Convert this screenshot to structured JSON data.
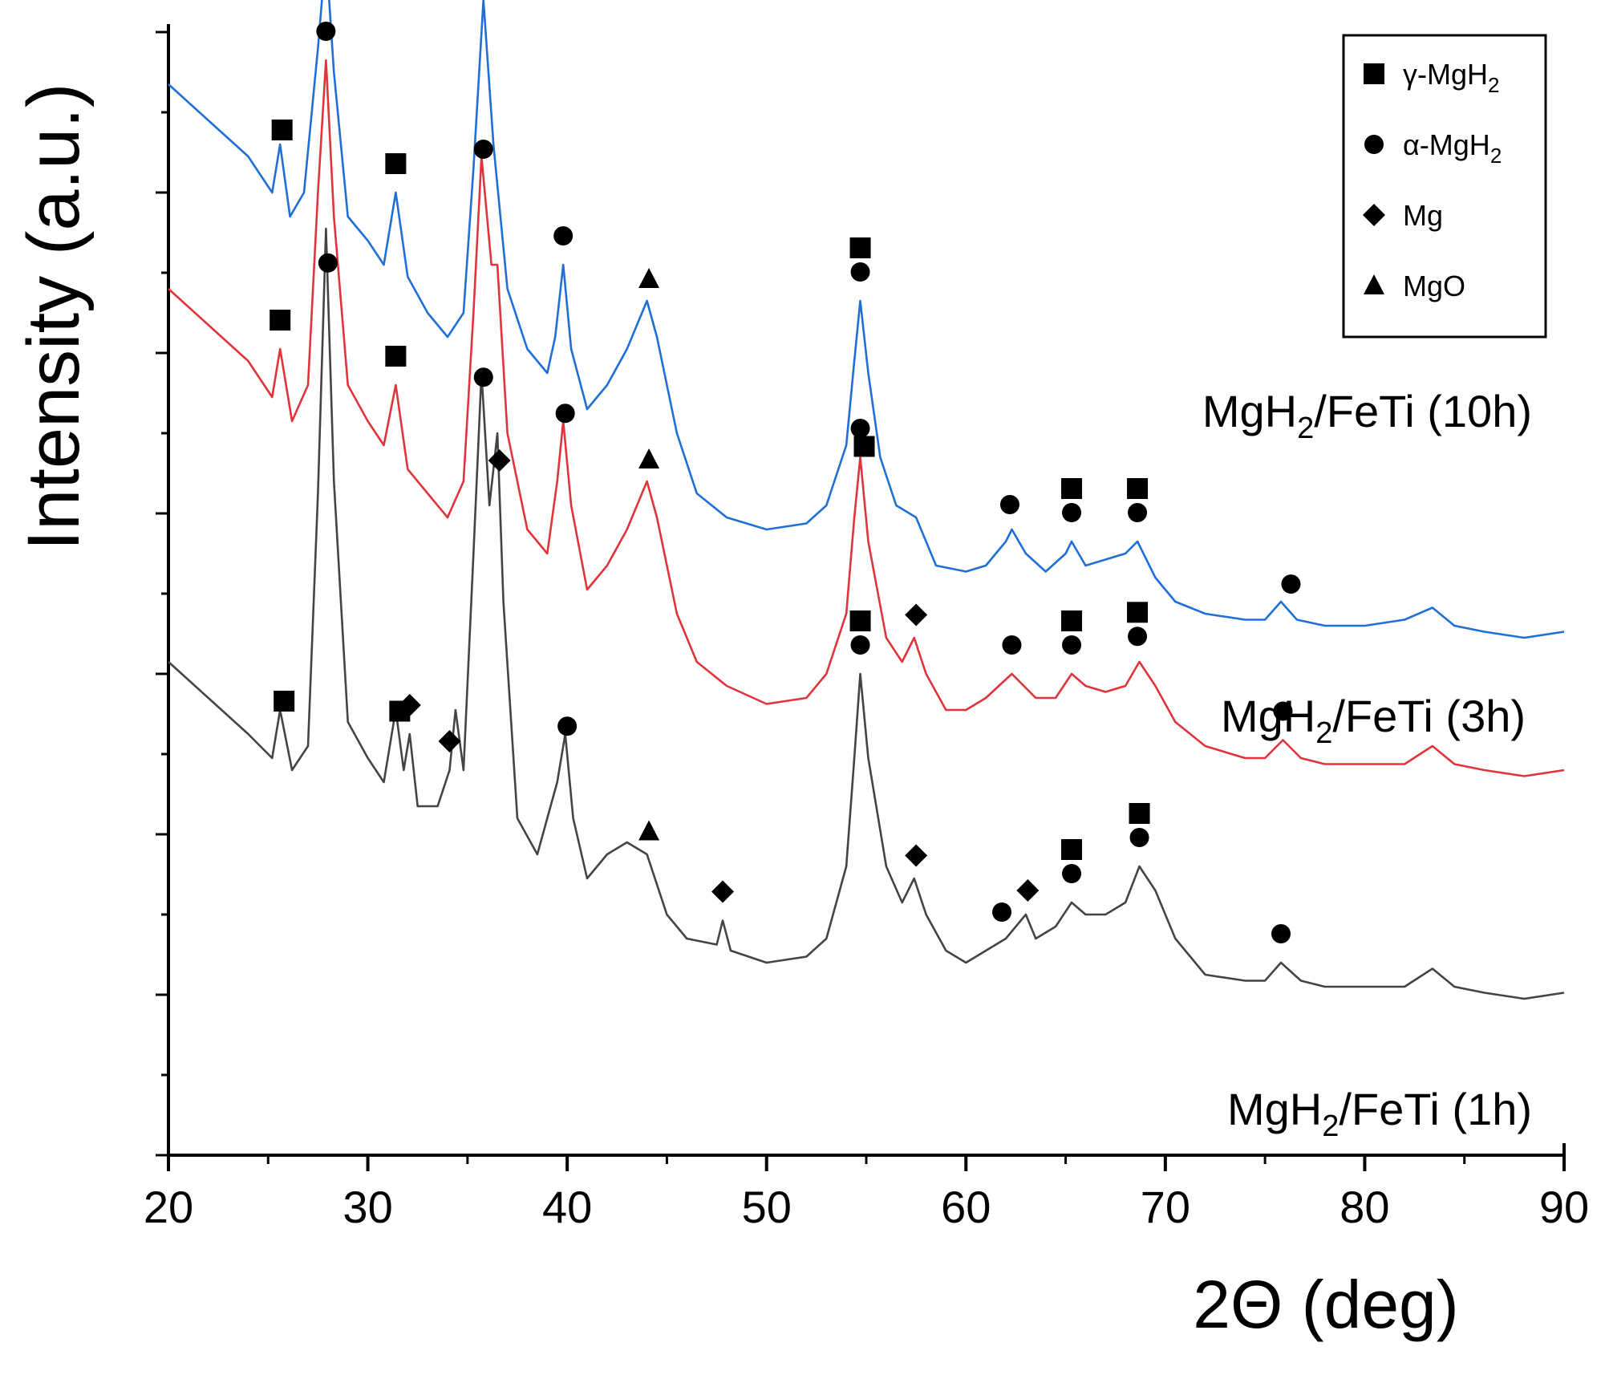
{
  "chart_data": {
    "type": "line",
    "xlabel": "2Θ (deg)",
    "ylabel": "Intensity (a.u.)",
    "xlim": [
      20,
      90
    ],
    "xticks": [
      20,
      30,
      40,
      50,
      60,
      70,
      80,
      90
    ],
    "y_ticks_labeled": false,
    "legend": {
      "placement": "top-right",
      "entries": [
        {
          "marker": "square",
          "label": "γ-MgH",
          "sub": "2"
        },
        {
          "marker": "circle",
          "label": "α-MgH",
          "sub": "2"
        },
        {
          "marker": "diamond",
          "label": "Mg",
          "sub": ""
        },
        {
          "marker": "triangle",
          "label": "MgO",
          "sub": ""
        }
      ]
    },
    "series": [
      {
        "name": "MgH",
        "name_sub": "2",
        "name_suffix": "/FeTi (10h)",
        "color": "#1f6fd6",
        "points": [
          [
            20,
            89
          ],
          [
            22,
            86
          ],
          [
            24,
            83
          ],
          [
            25.2,
            80
          ],
          [
            25.6,
            84
          ],
          [
            26.1,
            78
          ],
          [
            26.8,
            80
          ],
          [
            27.5,
            92
          ],
          [
            27.9,
            100
          ],
          [
            28.3,
            90
          ],
          [
            29,
            78
          ],
          [
            30,
            76
          ],
          [
            30.8,
            74
          ],
          [
            31.4,
            80
          ],
          [
            32,
            73
          ],
          [
            33,
            70
          ],
          [
            34,
            68
          ],
          [
            34.8,
            70
          ],
          [
            35.3,
            82
          ],
          [
            35.8,
            96
          ],
          [
            36.3,
            84
          ],
          [
            37,
            72
          ],
          [
            38,
            67
          ],
          [
            39,
            65
          ],
          [
            39.4,
            68
          ],
          [
            39.8,
            74
          ],
          [
            40.2,
            67
          ],
          [
            41,
            62
          ],
          [
            42,
            64
          ],
          [
            43,
            67
          ],
          [
            44,
            71
          ],
          [
            44.5,
            68
          ],
          [
            45.5,
            60
          ],
          [
            46.5,
            55
          ],
          [
            48,
            53
          ],
          [
            50,
            52
          ],
          [
            52,
            52.5
          ],
          [
            53,
            54
          ],
          [
            54,
            59
          ],
          [
            54.4,
            66
          ],
          [
            54.7,
            71
          ],
          [
            55.1,
            65
          ],
          [
            55.7,
            58
          ],
          [
            56.5,
            54
          ],
          [
            57.5,
            53
          ],
          [
            58.5,
            49
          ],
          [
            60,
            48.5
          ],
          [
            61,
            49
          ],
          [
            62,
            51
          ],
          [
            62.3,
            52
          ],
          [
            63,
            50
          ],
          [
            64,
            48.5
          ],
          [
            65,
            50
          ],
          [
            65.3,
            51
          ],
          [
            66,
            49
          ],
          [
            67,
            49.5
          ],
          [
            68,
            50
          ],
          [
            68.6,
            51
          ],
          [
            69.5,
            48
          ],
          [
            70.5,
            46
          ],
          [
            72,
            45
          ],
          [
            74,
            44.5
          ],
          [
            75,
            44.5
          ],
          [
            75.8,
            46
          ],
          [
            76.6,
            44.5
          ],
          [
            78,
            44
          ],
          [
            80,
            44
          ],
          [
            82,
            44.5
          ],
          [
            83.4,
            45.5
          ],
          [
            84.5,
            44
          ],
          [
            86,
            43.5
          ],
          [
            88,
            43
          ],
          [
            90,
            43.5
          ]
        ]
      },
      {
        "name": "MgH",
        "name_sub": "2",
        "name_suffix": "/FeTi (3h)",
        "color": "#e0343a",
        "points": [
          [
            20,
            72
          ],
          [
            22,
            69
          ],
          [
            24,
            66
          ],
          [
            25.2,
            63
          ],
          [
            25.6,
            67
          ],
          [
            26.2,
            61
          ],
          [
            27,
            64
          ],
          [
            27.5,
            80
          ],
          [
            27.9,
            91
          ],
          [
            28.3,
            78
          ],
          [
            29,
            64
          ],
          [
            30,
            61
          ],
          [
            30.8,
            59
          ],
          [
            31.4,
            64
          ],
          [
            32,
            57
          ],
          [
            33,
            55
          ],
          [
            34,
            53
          ],
          [
            34.8,
            56
          ],
          [
            35.3,
            70
          ],
          [
            35.7,
            83
          ],
          [
            36.2,
            74
          ],
          [
            36.5,
            74
          ],
          [
            37,
            60
          ],
          [
            38,
            52
          ],
          [
            39,
            50
          ],
          [
            39.5,
            56
          ],
          [
            39.8,
            61
          ],
          [
            40.2,
            54
          ],
          [
            41,
            47
          ],
          [
            42,
            49
          ],
          [
            43,
            52
          ],
          [
            44,
            56
          ],
          [
            44.5,
            53
          ],
          [
            45.5,
            45
          ],
          [
            46.5,
            41
          ],
          [
            48,
            39
          ],
          [
            50,
            37.5
          ],
          [
            52,
            38
          ],
          [
            53,
            40
          ],
          [
            54,
            45
          ],
          [
            54.4,
            53
          ],
          [
            54.7,
            58
          ],
          [
            55.1,
            51
          ],
          [
            56,
            43
          ],
          [
            56.8,
            41
          ],
          [
            57.4,
            43
          ],
          [
            58,
            40
          ],
          [
            59,
            37
          ],
          [
            60,
            37
          ],
          [
            61,
            38
          ],
          [
            62.3,
            40
          ],
          [
            63.5,
            38
          ],
          [
            64.5,
            38
          ],
          [
            65.3,
            40
          ],
          [
            66,
            39
          ],
          [
            67,
            38.5
          ],
          [
            68,
            39
          ],
          [
            68.7,
            41
          ],
          [
            69.5,
            39
          ],
          [
            70.5,
            36
          ],
          [
            72,
            34
          ],
          [
            74,
            33
          ],
          [
            75,
            33
          ],
          [
            75.9,
            34.5
          ],
          [
            76.8,
            33
          ],
          [
            78,
            32.5
          ],
          [
            80,
            32.5
          ],
          [
            82,
            32.5
          ],
          [
            83.4,
            34
          ],
          [
            84.5,
            32.5
          ],
          [
            86,
            32
          ],
          [
            88,
            31.5
          ],
          [
            90,
            32
          ]
        ]
      },
      {
        "name": "MgH",
        "name_sub": "2",
        "name_suffix": "/FeTi (1h)",
        "color": "#444444",
        "points": [
          [
            20,
            41
          ],
          [
            22,
            38
          ],
          [
            24,
            35
          ],
          [
            25.2,
            33
          ],
          [
            25.6,
            37
          ],
          [
            26.2,
            32
          ],
          [
            27,
            34
          ],
          [
            27.5,
            55
          ],
          [
            27.9,
            77
          ],
          [
            28.3,
            56
          ],
          [
            29,
            36
          ],
          [
            30,
            33
          ],
          [
            30.8,
            31
          ],
          [
            31.4,
            37
          ],
          [
            31.8,
            32
          ],
          [
            32.1,
            35
          ],
          [
            32.5,
            29
          ],
          [
            33.5,
            29
          ],
          [
            34.1,
            32
          ],
          [
            34.4,
            37
          ],
          [
            34.8,
            32
          ],
          [
            35.3,
            50
          ],
          [
            35.7,
            65
          ],
          [
            36.1,
            54
          ],
          [
            36.5,
            60
          ],
          [
            36.8,
            46
          ],
          [
            37.5,
            28
          ],
          [
            38.5,
            25
          ],
          [
            39.5,
            31
          ],
          [
            39.9,
            35
          ],
          [
            40.3,
            28
          ],
          [
            41,
            23
          ],
          [
            42,
            25
          ],
          [
            43,
            26
          ],
          [
            44,
            25
          ],
          [
            45,
            20
          ],
          [
            46,
            18
          ],
          [
            47.5,
            17.5
          ],
          [
            47.8,
            19.5
          ],
          [
            48.2,
            17
          ],
          [
            50,
            16
          ],
          [
            52,
            16.5
          ],
          [
            53,
            18
          ],
          [
            54,
            24
          ],
          [
            54.4,
            33
          ],
          [
            54.7,
            40
          ],
          [
            55.1,
            33
          ],
          [
            56,
            24
          ],
          [
            56.8,
            21
          ],
          [
            57.4,
            23
          ],
          [
            58,
            20
          ],
          [
            59,
            17
          ],
          [
            60,
            16
          ],
          [
            61,
            17
          ],
          [
            62,
            18
          ],
          [
            63,
            20
          ],
          [
            63.5,
            18
          ],
          [
            64.5,
            19
          ],
          [
            65.3,
            21
          ],
          [
            66,
            20
          ],
          [
            67,
            20
          ],
          [
            68,
            21
          ],
          [
            68.7,
            24
          ],
          [
            69.5,
            22
          ],
          [
            70.5,
            18
          ],
          [
            72,
            15
          ],
          [
            74,
            14.5
          ],
          [
            75,
            14.5
          ],
          [
            75.8,
            16
          ],
          [
            76.8,
            14.5
          ],
          [
            78,
            14
          ],
          [
            80,
            14
          ],
          [
            82,
            14
          ],
          [
            83.4,
            15.5
          ],
          [
            84.5,
            14
          ],
          [
            86,
            13.5
          ],
          [
            88,
            13
          ],
          [
            90,
            13.5
          ]
        ]
      }
    ],
    "phase_markers": [
      {
        "series": 0,
        "x": 25.7,
        "marker": "square"
      },
      {
        "series": 0,
        "x": 27.9,
        "marker": "circle"
      },
      {
        "series": 0,
        "x": 31.4,
        "marker": "square"
      },
      {
        "series": 0,
        "x": 35.8,
        "marker": "circle"
      },
      {
        "series": 0,
        "x": 39.8,
        "marker": "circle"
      },
      {
        "series": 0,
        "x": 44.1,
        "marker": "triangle"
      },
      {
        "series": 0,
        "x": 54.7,
        "marker": "square"
      },
      {
        "series": 0,
        "x": 54.7,
        "marker": "circle"
      },
      {
        "series": 0,
        "x": 62.2,
        "marker": "circle"
      },
      {
        "series": 0,
        "x": 65.3,
        "marker": "square"
      },
      {
        "series": 0,
        "x": 65.3,
        "marker": "circle"
      },
      {
        "series": 0,
        "x": 68.6,
        "marker": "square"
      },
      {
        "series": 0,
        "x": 68.6,
        "marker": "circle"
      },
      {
        "series": 0,
        "x": 76.3,
        "marker": "circle"
      },
      {
        "series": 1,
        "x": 25.6,
        "marker": "square"
      },
      {
        "series": 1,
        "x": 27.9,
        "marker": "circle"
      },
      {
        "series": 1,
        "x": 31.4,
        "marker": "square"
      },
      {
        "series": 1,
        "x": 35.8,
        "marker": "circle"
      },
      {
        "series": 1,
        "x": 39.9,
        "marker": "circle"
      },
      {
        "series": 1,
        "x": 44.1,
        "marker": "triangle"
      },
      {
        "series": 1,
        "x": 54.9,
        "marker": "square"
      },
      {
        "series": 1,
        "x": 54.7,
        "marker": "circle"
      },
      {
        "series": 1,
        "x": 57.5,
        "marker": "diamond"
      },
      {
        "series": 1,
        "x": 62.3,
        "marker": "circle"
      },
      {
        "series": 1,
        "x": 65.3,
        "marker": "square"
      },
      {
        "series": 1,
        "x": 65.3,
        "marker": "circle"
      },
      {
        "series": 1,
        "x": 68.6,
        "marker": "square"
      },
      {
        "series": 1,
        "x": 68.6,
        "marker": "circle"
      },
      {
        "series": 1,
        "x": 75.9,
        "marker": "circle"
      },
      {
        "series": 2,
        "x": 25.8,
        "marker": "square"
      },
      {
        "series": 2,
        "x": 28.0,
        "marker": "circle"
      },
      {
        "series": 2,
        "x": 31.6,
        "marker": "square"
      },
      {
        "series": 2,
        "x": 32.1,
        "marker": "diamond"
      },
      {
        "series": 2,
        "x": 34.1,
        "marker": "diamond"
      },
      {
        "series": 2,
        "x": 35.8,
        "marker": "circle"
      },
      {
        "series": 2,
        "x": 36.6,
        "marker": "diamond"
      },
      {
        "series": 2,
        "x": 40.0,
        "marker": "circle"
      },
      {
        "series": 2,
        "x": 44.1,
        "marker": "triangle"
      },
      {
        "series": 2,
        "x": 47.8,
        "marker": "diamond"
      },
      {
        "series": 2,
        "x": 54.7,
        "marker": "square"
      },
      {
        "series": 2,
        "x": 54.7,
        "marker": "circle"
      },
      {
        "series": 2,
        "x": 57.5,
        "marker": "diamond"
      },
      {
        "series": 2,
        "x": 61.8,
        "marker": "circle"
      },
      {
        "series": 2,
        "x": 63.1,
        "marker": "diamond"
      },
      {
        "series": 2,
        "x": 65.3,
        "marker": "square"
      },
      {
        "series": 2,
        "x": 65.3,
        "marker": "circle"
      },
      {
        "series": 2,
        "x": 68.7,
        "marker": "square"
      },
      {
        "series": 2,
        "x": 68.7,
        "marker": "circle"
      },
      {
        "series": 2,
        "x": 75.8,
        "marker": "circle"
      }
    ]
  }
}
